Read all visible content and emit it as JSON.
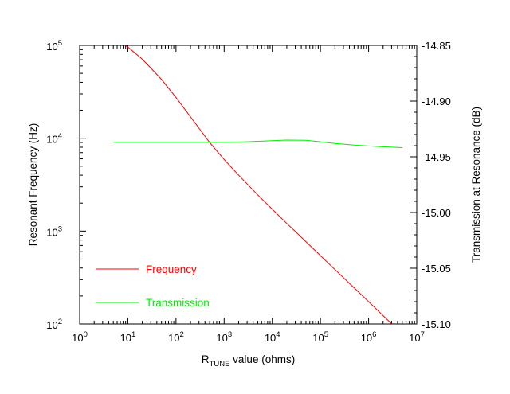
{
  "chart_data": {
    "type": "line",
    "x_scale": "log",
    "xlim": [
      1,
      10000000
    ],
    "xticks": [
      {
        "base": "10",
        "exp": "0",
        "value": 1
      },
      {
        "base": "10",
        "exp": "1",
        "value": 10
      },
      {
        "base": "10",
        "exp": "2",
        "value": 100
      },
      {
        "base": "10",
        "exp": "3",
        "value": 1000
      },
      {
        "base": "10",
        "exp": "4",
        "value": 10000
      },
      {
        "base": "10",
        "exp": "5",
        "value": 100000
      },
      {
        "base": "10",
        "exp": "6",
        "value": 1000000
      },
      {
        "base": "10",
        "exp": "7",
        "value": 10000000
      }
    ],
    "xlabel": {
      "prefix": "R",
      "subscript": "TUNE",
      "suffix": " value (ohms)"
    },
    "left_axis": {
      "label": "Resonant Frequency (Hz)",
      "scale": "log",
      "ylim": [
        100,
        100000
      ],
      "ticks": [
        {
          "base": "10",
          "exp": "2",
          "value": 100
        },
        {
          "base": "10",
          "exp": "3",
          "value": 1000
        },
        {
          "base": "10",
          "exp": "4",
          "value": 10000
        },
        {
          "base": "10",
          "exp": "5",
          "value": 100000
        }
      ]
    },
    "right_axis": {
      "label": "Transmission at Resonance (dB)",
      "scale": "linear",
      "ylim": [
        -15.1,
        -14.85
      ],
      "ticks": [
        {
          "label": "-14.85",
          "value": -14.85
        },
        {
          "label": "-14.90",
          "value": -14.9
        },
        {
          "label": "-14.95",
          "value": -14.95
        },
        {
          "label": "-15.00",
          "value": -15.0
        },
        {
          "label": "-15.05",
          "value": -15.05
        },
        {
          "label": "-15.10",
          "value": -15.1
        }
      ]
    },
    "grid": false,
    "legend": {
      "position": "lower-left"
    },
    "series": [
      {
        "name": "Frequency",
        "axis": "left",
        "color": "#ff0000",
        "points": [
          [
            5,
            120000
          ],
          [
            7,
            107000
          ],
          [
            10,
            96000
          ],
          [
            20,
            71000
          ],
          [
            30,
            57000
          ],
          [
            50,
            43000
          ],
          [
            100,
            27500
          ],
          [
            200,
            17000
          ],
          [
            500,
            9000
          ],
          [
            1000,
            5900
          ],
          [
            2000,
            4000
          ],
          [
            5000,
            2450
          ],
          [
            10000,
            1720
          ],
          [
            20000,
            1210
          ],
          [
            50000,
            770
          ],
          [
            100000,
            545
          ],
          [
            200000,
            385
          ],
          [
            500000,
            245
          ],
          [
            1000000,
            174
          ],
          [
            2000000,
            123
          ],
          [
            5000000,
            78
          ]
        ]
      },
      {
        "name": "Transmission",
        "axis": "right",
        "color": "#00ee00",
        "points": [
          [
            5,
            -14.937
          ],
          [
            10,
            -14.937
          ],
          [
            100,
            -14.937
          ],
          [
            1000,
            -14.937
          ],
          [
            3000,
            -14.9365
          ],
          [
            10000,
            -14.9355
          ],
          [
            20000,
            -14.935
          ],
          [
            50000,
            -14.9352
          ],
          [
            100000,
            -14.9365
          ],
          [
            200000,
            -14.938
          ],
          [
            500000,
            -14.9395
          ],
          [
            1000000,
            -14.9403
          ],
          [
            2000000,
            -14.941
          ],
          [
            5000000,
            -14.9418
          ]
        ]
      }
    ]
  }
}
